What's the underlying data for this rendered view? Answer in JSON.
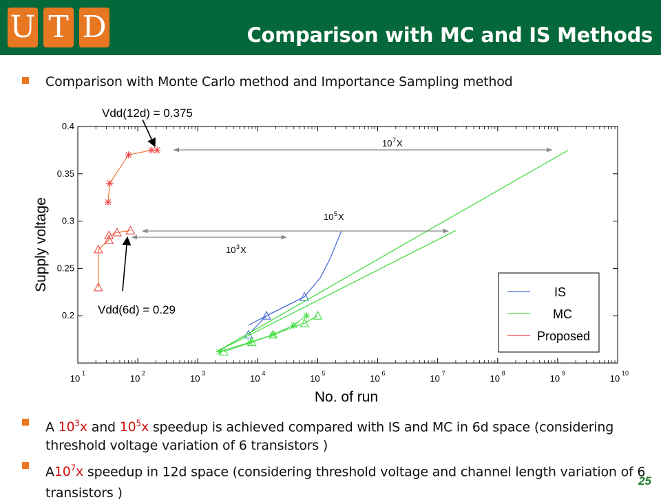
{
  "header": {
    "logo_letters": [
      "U",
      "T",
      "D"
    ],
    "title": "Comparison with MC and IS Methods",
    "header_color": "#05683a",
    "logo_color": "#e87722"
  },
  "bullets": [
    {
      "text": "Comparison with Monte Carlo method and Importance Sampling method"
    },
    {
      "pre": "A ",
      "v1_base": "10",
      "v1_exp": "3",
      "v1_suffix": "x",
      "mid": " and ",
      "v2_base": "10",
      "v2_exp": "5",
      "v2_suffix": "x",
      "post": " speedup is achieved compared with IS and MC in 6d space (considering threshold voltage variation of 6 transistors )"
    },
    {
      "pre": " A",
      "v1_base": "10",
      "v1_exp": "7",
      "v1_suffix": "x",
      "post": " speedup in 12d space (considering threshold voltage and channel length variation of 6 transistors )"
    }
  ],
  "page_number": "25",
  "chart_data": {
    "type": "scatter",
    "xlabel": "No. of run",
    "ylabel": "Supply voltage",
    "x_scale": "log",
    "xlim": [
      10,
      10000000000
    ],
    "ylim": [
      0.15,
      0.4
    ],
    "x_tick_labels": [
      {
        "base": "10",
        "exp": "1"
      },
      {
        "base": "10",
        "exp": "2"
      },
      {
        "base": "10",
        "exp": "3"
      },
      {
        "base": "10",
        "exp": "4"
      },
      {
        "base": "10",
        "exp": "5"
      },
      {
        "base": "10",
        "exp": "6"
      },
      {
        "base": "10",
        "exp": "7"
      },
      {
        "base": "10",
        "exp": "8"
      },
      {
        "base": "10",
        "exp": "9"
      },
      {
        "base": "10",
        "exp": "10"
      }
    ],
    "y_ticks": [
      0.2,
      0.25,
      0.3,
      0.35,
      0.4
    ],
    "y_tick_labels": [
      "0.2",
      "0.25",
      "0.3",
      "0.35",
      "0.4"
    ],
    "legend": {
      "placement": "bottom-right",
      "entries": [
        {
          "label": "IS",
          "color": "#4a6fd8"
        },
        {
          "label": "MC",
          "color": "#44dd44"
        },
        {
          "label": "Proposed",
          "color": "#ee4444"
        }
      ]
    },
    "series": [
      {
        "name": "Proposed",
        "color": "#ee4444",
        "line_color": "#ee7733",
        "groups": [
          {
            "marker": "triangle",
            "points": [
              [
                22,
                0.23
              ],
              [
                22,
                0.27
              ],
              [
                33,
                0.28
              ],
              [
                33,
                0.285
              ],
              [
                45,
                0.288
              ],
              [
                75,
                0.29
              ]
            ]
          },
          {
            "marker": "star",
            "points": [
              [
                32,
                0.32
              ],
              [
                34,
                0.34
              ],
              [
                70,
                0.37
              ],
              [
                170,
                0.375
              ],
              [
                210,
                0.375
              ]
            ]
          }
        ]
      },
      {
        "name": "IS",
        "color": "#4a6fd8",
        "groups": [
          {
            "marker": "triangle",
            "points": [
              [
                7000,
                0.18
              ],
              [
                14000,
                0.2
              ],
              [
                60000,
                0.22
              ]
            ]
          },
          {
            "marker": "line",
            "points": [
              [
                7000,
                0.19
              ],
              [
                14000,
                0.2
              ],
              [
                60000,
                0.22
              ],
              [
                110000,
                0.24
              ],
              [
                160000,
                0.26
              ],
              [
                250000,
                0.29
              ]
            ]
          }
        ]
      },
      {
        "name": "MC",
        "color": "#44dd44",
        "groups": [
          {
            "marker": "triangle",
            "points": [
              [
                2700,
                0.162
              ],
              [
                8000,
                0.172
              ],
              [
                18000,
                0.18
              ],
              [
                60000,
                0.192
              ],
              [
                100000,
                0.2
              ]
            ]
          },
          {
            "marker": "star",
            "points": [
              [
                2300,
                0.162
              ],
              [
                7500,
                0.172
              ],
              [
                18000,
                0.18
              ],
              [
                40000,
                0.19
              ],
              [
                65000,
                0.2
              ]
            ]
          },
          {
            "marker": "line",
            "points": [
              [
                2200,
                0.163
              ],
              [
                20000000,
                0.29
              ]
            ]
          },
          {
            "marker": "line",
            "points": [
              [
                2500,
                0.165
              ],
              [
                1500000000,
                0.375
              ]
            ]
          }
        ]
      }
    ],
    "annotations": [
      {
        "text": "Vdd(12d) = 0.375",
        "points_to": [
          200,
          0.375
        ]
      },
      {
        "text": "Vdd(6d) = 0.29",
        "points_to": [
          70,
          0.289
        ]
      }
    ],
    "speedup_arrows": [
      {
        "label_base": "10",
        "label_exp": "7",
        "label_suffix": "X",
        "from_x": 400,
        "to_x": 800000000,
        "y": 0.375
      },
      {
        "label_base": "10",
        "label_exp": "5",
        "label_suffix": "X",
        "from_x": 120,
        "to_x": 15000000,
        "y": 0.29
      },
      {
        "label_base": "10",
        "label_exp": "3",
        "label_suffix": "X",
        "from_x": 80,
        "to_x": 30000,
        "y": 0.285
      }
    ]
  }
}
